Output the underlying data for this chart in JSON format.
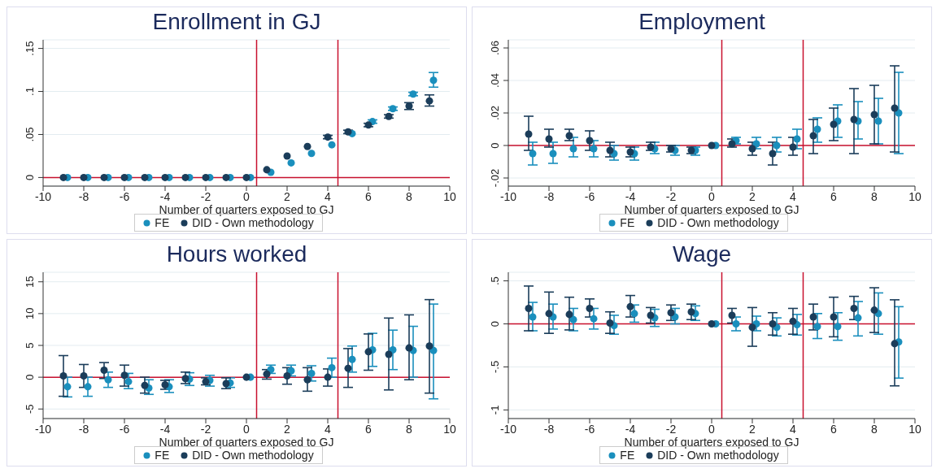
{
  "chart_data": [
    {
      "type": "scatter",
      "title": "Enrollment in GJ",
      "xlabel": "Number of quarters exposed to GJ",
      "xlim": [
        -10,
        10
      ],
      "xticks": [
        -10,
        -8,
        -6,
        -4,
        -2,
        0,
        2,
        4,
        6,
        8,
        10
      ],
      "ylim": [
        -0.01,
        0.16
      ],
      "yticks": [
        0,
        {
          "value": 0.05,
          "label": ".05"
        },
        {
          "value": 0.1,
          "label": ".1"
        },
        {
          "value": 0.15,
          "label": ".15"
        }
      ],
      "grid": "y",
      "legend": "bottom",
      "marker": "circle",
      "ref_lines": [
        {
          "axis": "x",
          "value": 0.5,
          "color": "#c8102e"
        },
        {
          "axis": "x",
          "value": 4.5,
          "color": "#c8102e"
        },
        {
          "axis": "y",
          "value": 0,
          "color": "#c8102e"
        }
      ],
      "series": [
        {
          "name": "FE",
          "color": "#1a8fbd",
          "x": [
            -8.8,
            -7.8,
            -6.8,
            -5.8,
            -4.8,
            -3.8,
            -2.8,
            -1.8,
            -0.8,
            0.2,
            1.2,
            2.2,
            3.2,
            4.2,
            5.2,
            6.2,
            7.2,
            8.2,
            9.2
          ],
          "values": [
            0,
            0,
            0,
            0,
            0,
            0,
            0,
            0,
            0,
            0,
            0.006,
            0.017,
            0.028,
            0.038,
            0.051,
            0.065,
            0.08,
            0.097,
            0.113
          ],
          "errors": [
            null,
            null,
            null,
            null,
            null,
            null,
            null,
            null,
            null,
            null,
            null,
            null,
            null,
            null,
            null,
            [
              0.063,
              0.067
            ],
            [
              0.078,
              0.082
            ],
            [
              0.095,
              0.099
            ],
            [
              0.105,
              0.122
            ]
          ]
        },
        {
          "name": "DID - Own methodology",
          "color": "#1b3d5a",
          "x": [
            -9,
            -8,
            -7,
            -6,
            -5,
            -4,
            -3,
            -2,
            -1,
            0,
            1,
            2,
            3,
            4,
            5,
            6,
            7,
            8,
            9
          ],
          "values": [
            0,
            0,
            0,
            0,
            0,
            0,
            0,
            0,
            0,
            0,
            0.009,
            0.025,
            0.036,
            0.047,
            0.053,
            0.061,
            0.071,
            0.083,
            0.089
          ],
          "errors": [
            null,
            null,
            null,
            null,
            null,
            null,
            null,
            null,
            null,
            null,
            null,
            null,
            null,
            [
              0.045,
              0.049
            ],
            [
              0.051,
              0.055
            ],
            [
              0.059,
              0.063
            ],
            [
              0.069,
              0.073
            ],
            [
              0.079,
              0.087
            ],
            [
              0.083,
              0.096
            ]
          ]
        }
      ]
    },
    {
      "type": "scatter",
      "title": "Employment",
      "xlabel": "Number of quarters exposed to GJ",
      "xlim": [
        -10,
        10
      ],
      "xticks": [
        -10,
        -8,
        -6,
        -4,
        -2,
        0,
        2,
        4,
        6,
        8,
        10
      ],
      "ylim": [
        -0.025,
        0.065
      ],
      "yticks": [
        {
          "value": -0.02,
          "label": "-.02"
        },
        0,
        {
          "value": 0.02,
          "label": ".02"
        },
        {
          "value": 0.04,
          "label": ".04"
        },
        {
          "value": 0.06,
          "label": ".06"
        }
      ],
      "grid": "y",
      "legend": "bottom",
      "marker": "circle",
      "ref_lines": [
        {
          "axis": "x",
          "value": 0.5,
          "color": "#c8102e"
        },
        {
          "axis": "x",
          "value": 4.5,
          "color": "#c8102e"
        },
        {
          "axis": "y",
          "value": 0,
          "color": "#c8102e"
        }
      ],
      "series": [
        {
          "name": "FE",
          "color": "#1a8fbd",
          "x": [
            -8.8,
            -7.8,
            -6.8,
            -5.8,
            -4.8,
            -3.8,
            -2.8,
            -1.8,
            -0.8,
            0.2,
            1.2,
            2.2,
            3.2,
            4.2,
            5.2,
            6.2,
            7.2,
            8.2,
            9.2
          ],
          "values": [
            -0.005,
            -0.005,
            -0.002,
            -0.002,
            -0.005,
            -0.005,
            -0.002,
            -0.003,
            -0.003,
            0,
            0.003,
            0.001,
            0,
            0.004,
            0.01,
            0.015,
            0.015,
            0.015,
            0.02
          ],
          "errors": [
            [
              -0.012,
              0.002
            ],
            [
              -0.011,
              0.002
            ],
            [
              -0.007,
              0.005
            ],
            [
              -0.007,
              0.003
            ],
            [
              -0.009,
              0
            ],
            [
              -0.009,
              -0.001
            ],
            [
              -0.005,
              0.002
            ],
            [
              -0.006,
              0
            ],
            [
              -0.006,
              -0.001
            ],
            null,
            [
              0.001,
              0.005
            ],
            [
              -0.002,
              0.005
            ],
            [
              -0.004,
              0.005
            ],
            [
              -0.002,
              0.01
            ],
            [
              0.002,
              0.017
            ],
            [
              0.005,
              0.025
            ],
            [
              0.004,
              0.027
            ],
            [
              0.001,
              0.029
            ],
            [
              -0.005,
              0.045
            ]
          ]
        },
        {
          "name": "DID - Own methodology",
          "color": "#1b3d5a",
          "x": [
            -9,
            -8,
            -7,
            -6,
            -5,
            -4,
            -3,
            -2,
            -1,
            0,
            1,
            2,
            3,
            4,
            5,
            6,
            7,
            8,
            9
          ],
          "values": [
            0.007,
            0.004,
            0.006,
            0.003,
            -0.003,
            -0.004,
            -0.001,
            -0.002,
            -0.003,
            0,
            0.001,
            -0.002,
            -0.005,
            -0.001,
            0.006,
            0.013,
            0.016,
            0.019,
            0.023
          ],
          "errors": [
            [
              -0.003,
              0.018
            ],
            [
              -0.001,
              0.01
            ],
            [
              0.003,
              0.01
            ],
            [
              -0.003,
              0.009
            ],
            [
              -0.007,
              0.002
            ],
            [
              -0.007,
              -0.001
            ],
            [
              -0.003,
              0.002
            ],
            [
              -0.004,
              0
            ],
            [
              -0.005,
              -0.001
            ],
            null,
            [
              -0.001,
              0.004
            ],
            [
              -0.006,
              0.002
            ],
            [
              -0.012,
              0.002
            ],
            [
              -0.006,
              0.005
            ],
            [
              -0.005,
              0.016
            ],
            [
              0.003,
              0.023
            ],
            [
              -0.005,
              0.035
            ],
            [
              0.001,
              0.037
            ],
            [
              -0.004,
              0.049
            ]
          ]
        }
      ]
    },
    {
      "type": "scatter",
      "title": "Hours worked",
      "xlabel": "Number of quarters exposed to GJ",
      "xlim": [
        -10,
        10
      ],
      "xticks": [
        -10,
        -8,
        -6,
        -4,
        -2,
        0,
        2,
        4,
        6,
        8,
        10
      ],
      "ylim": [
        -6.5,
        16.5
      ],
      "yticks": [
        -5,
        0,
        5,
        10,
        15
      ],
      "grid": "y",
      "legend": "bottom",
      "marker": "circle",
      "ref_lines": [
        {
          "axis": "x",
          "value": 0.5,
          "color": "#c8102e"
        },
        {
          "axis": "x",
          "value": 4.5,
          "color": "#c8102e"
        },
        {
          "axis": "y",
          "value": 0,
          "color": "#c8102e"
        }
      ],
      "series": [
        {
          "name": "FE",
          "color": "#1a8fbd",
          "x": [
            -8.8,
            -7.8,
            -6.8,
            -5.8,
            -4.8,
            -3.8,
            -2.8,
            -1.8,
            -0.8,
            0.2,
            1.2,
            2.2,
            3.2,
            4.2,
            5.2,
            6.2,
            7.2,
            8.2,
            9.2
          ],
          "values": [
            -1.5,
            -1.5,
            -0.4,
            -0.7,
            -1.7,
            -1.5,
            -0.3,
            -0.5,
            -0.9,
            0,
            1.2,
            1,
            0.6,
            1.5,
            2.8,
            4.3,
            4.3,
            4.2,
            4.2
          ],
          "errors": [
            [
              -3.1,
              0
            ],
            [
              -3,
              0
            ],
            [
              -1.6,
              0.8
            ],
            [
              -1.8,
              0.6
            ],
            [
              -2.7,
              -0.4
            ],
            [
              -2.4,
              -0.4
            ],
            [
              -1.3,
              0.7
            ],
            [
              -1.4,
              0.3
            ],
            [
              -1.6,
              -0.1
            ],
            null,
            [
              0.6,
              1.9
            ],
            [
              0.2,
              1.9
            ],
            [
              -0.6,
              1.8
            ],
            [
              0,
              3
            ],
            [
              0.8,
              4.9
            ],
            [
              1.7,
              6.9
            ],
            [
              1.2,
              7.4
            ],
            [
              0,
              8
            ],
            [
              -3.4,
              11.5
            ]
          ]
        },
        {
          "name": "DID - Own methodology",
          "color": "#1b3d5a",
          "x": [
            -9,
            -8,
            -7,
            -6,
            -5,
            -4,
            -3,
            -2,
            -1,
            0,
            1,
            2,
            3,
            4,
            5,
            6,
            7,
            8,
            9
          ],
          "values": [
            0.2,
            0.2,
            1.1,
            0.3,
            -1.3,
            -1.2,
            -0.2,
            -0.7,
            -1,
            0,
            0.5,
            0.2,
            -0.4,
            0,
            1.4,
            4,
            3.6,
            4.6,
            4.9
          ],
          "errors": [
            [
              -3,
              3.4
            ],
            [
              -1.6,
              2
            ],
            [
              -0.2,
              2.3
            ],
            [
              -1.4,
              1.9
            ],
            [
              -2.5,
              0
            ],
            [
              -1.9,
              -0.5
            ],
            [
              -1,
              0.8
            ],
            [
              -1.2,
              -0.1
            ],
            [
              -1.8,
              -0.1
            ],
            null,
            [
              -0.3,
              1.2
            ],
            [
              -1.1,
              1.5
            ],
            [
              -2.2,
              1.5
            ],
            [
              -1.4,
              1.3
            ],
            [
              -1.6,
              4.5
            ],
            [
              1.1,
              6.8
            ],
            [
              -2,
              9.3
            ],
            [
              -0.4,
              9.8
            ],
            [
              -2.5,
              12.2
            ]
          ]
        }
      ]
    },
    {
      "type": "scatter",
      "title": "Wage",
      "xlabel": "Number of quarters exposed to GJ",
      "xlim": [
        -10,
        10
      ],
      "xticks": [
        -10,
        -8,
        -6,
        -4,
        -2,
        0,
        2,
        4,
        6,
        8,
        10
      ],
      "ylim": [
        -1.1,
        0.6
      ],
      "yticks": [
        -1,
        {
          "value": -0.5,
          "label": "-.5"
        },
        0,
        {
          "value": 0.5,
          "label": ".5"
        }
      ],
      "grid": "y",
      "legend": "bottom",
      "marker": "circle",
      "ref_lines": [
        {
          "axis": "x",
          "value": 0.5,
          "color": "#c8102e"
        },
        {
          "axis": "x",
          "value": 4.5,
          "color": "#c8102e"
        },
        {
          "axis": "y",
          "value": 0,
          "color": "#c8102e"
        }
      ],
      "series": [
        {
          "name": "FE",
          "color": "#1a8fbd",
          "x": [
            -8.8,
            -7.8,
            -6.8,
            -5.8,
            -4.8,
            -3.8,
            -2.8,
            -1.8,
            -0.8,
            0.2,
            1.2,
            2.2,
            3.2,
            4.2,
            5.2,
            6.2,
            7.2,
            8.2,
            9.2
          ],
          "values": [
            0.08,
            0.08,
            0.05,
            0.06,
            -0.02,
            0.12,
            0.07,
            0.08,
            0.12,
            0,
            0,
            0,
            -0.04,
            -0.01,
            -0.03,
            -0.03,
            0.07,
            0.12,
            -0.21
          ],
          "errors": [
            [
              -0.08,
              0.25
            ],
            [
              -0.06,
              0.23
            ],
            [
              -0.08,
              0.18
            ],
            [
              -0.06,
              0.18
            ],
            [
              -0.12,
              0.1
            ],
            [
              0.02,
              0.22
            ],
            [
              -0.03,
              0.17
            ],
            [
              0,
              0.18
            ],
            [
              0.04,
              0.21
            ],
            null,
            [
              -0.08,
              0.08
            ],
            [
              -0.08,
              0.09
            ],
            [
              -0.14,
              0.07
            ],
            [
              -0.13,
              0.11
            ],
            [
              -0.17,
              0.12
            ],
            [
              -0.19,
              0.13
            ],
            [
              -0.14,
              0.26
            ],
            [
              -0.12,
              0.36
            ],
            [
              -0.63,
              0.2
            ]
          ]
        },
        {
          "name": "DID - Own methodology",
          "color": "#1b3d5a",
          "x": [
            -9,
            -8,
            -7,
            -6,
            -5,
            -4,
            -3,
            -2,
            -1,
            0,
            1,
            2,
            3,
            4,
            5,
            6,
            7,
            8,
            9
          ],
          "values": [
            0.18,
            0.12,
            0.11,
            0.18,
            0.01,
            0.2,
            0.1,
            0.13,
            0.14,
            0,
            0.1,
            -0.04,
            0,
            0.03,
            0.08,
            0.08,
            0.18,
            0.16,
            -0.23
          ],
          "errors": [
            [
              -0.08,
              0.44
            ],
            [
              -0.11,
              0.37
            ],
            [
              -0.07,
              0.31
            ],
            [
              0.08,
              0.29
            ],
            [
              -0.11,
              0.14
            ],
            [
              0.08,
              0.33
            ],
            [
              0.01,
              0.19
            ],
            [
              0.04,
              0.22
            ],
            [
              0.05,
              0.23
            ],
            null,
            [
              0.01,
              0.18
            ],
            [
              -0.26,
              0.19
            ],
            [
              -0.13,
              0.13
            ],
            [
              -0.12,
              0.18
            ],
            [
              -0.07,
              0.23
            ],
            [
              -0.15,
              0.31
            ],
            [
              0.05,
              0.32
            ],
            [
              -0.1,
              0.42
            ],
            [
              -0.72,
              0.28
            ]
          ]
        }
      ]
    }
  ]
}
